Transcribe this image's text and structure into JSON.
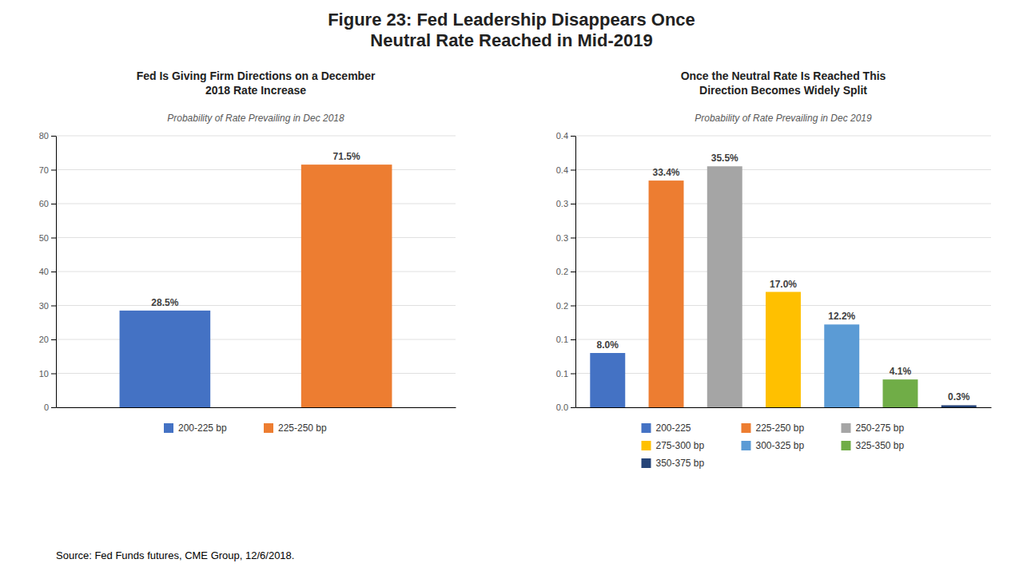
{
  "title": "Figure 23: Fed Leadership Disappears Once\nNeutral Rate Reached in Mid-2019",
  "source": "Source: Fed Funds futures, CME Group, 12/6/2018.",
  "chart_data": [
    {
      "type": "bar",
      "title": "Fed Is Giving Firm Directions on a December\n2018 Rate Increase",
      "subtitle": "Probability of Rate Prevailing in Dec 2018",
      "categories": [
        "200-225 bp",
        "225-250 bp"
      ],
      "values": [
        28.5,
        71.5
      ],
      "value_labels": [
        "28.5%",
        "71.5%"
      ],
      "colors": [
        "#4472C4",
        "#ED7D31"
      ],
      "ylim": [
        0,
        80
      ],
      "yticks": [
        0,
        10,
        20,
        30,
        40,
        50,
        60,
        70,
        80
      ],
      "grid": true,
      "data_labels": true,
      "legend": "bottom",
      "tick_labels": "y"
    },
    {
      "type": "bar",
      "title": "Once the Neutral Rate Is Reached This\nDirection Becomes Widely Split",
      "subtitle": "Probability of Rate Prevailing in Dec 2019",
      "categories": [
        "200-225",
        "225-250 bp",
        "250-275 bp",
        "275-300 bp",
        "300-325 bp",
        "325-350 bp",
        "350-375 bp"
      ],
      "values": [
        0.08,
        0.334,
        0.355,
        0.17,
        0.122,
        0.041,
        0.003
      ],
      "value_labels": [
        "8.0%",
        "33.4%",
        "35.5%",
        "17.0%",
        "12.2%",
        "4.1%",
        "0.3%"
      ],
      "colors": [
        "#4472C4",
        "#ED7D31",
        "#A5A5A5",
        "#FFC000",
        "#5B9BD5",
        "#70AD47",
        "#264478"
      ],
      "ylim": [
        0,
        0.4
      ],
      "yticks": [
        {
          "value": 0.0,
          "label": "0.0"
        },
        {
          "value": 0.05,
          "label": "0.1"
        },
        {
          "value": 0.1,
          "label": "0.1"
        },
        {
          "value": 0.15,
          "label": "0.2"
        },
        {
          "value": 0.2,
          "label": "0.2"
        },
        {
          "value": 0.25,
          "label": "0.3"
        },
        {
          "value": 0.3,
          "label": "0.3"
        },
        {
          "value": 0.35,
          "label": "0.4"
        },
        {
          "value": 0.4,
          "label": "0.4"
        }
      ],
      "grid": true,
      "data_labels": true,
      "legend": "bottom",
      "tick_labels": "y"
    }
  ]
}
